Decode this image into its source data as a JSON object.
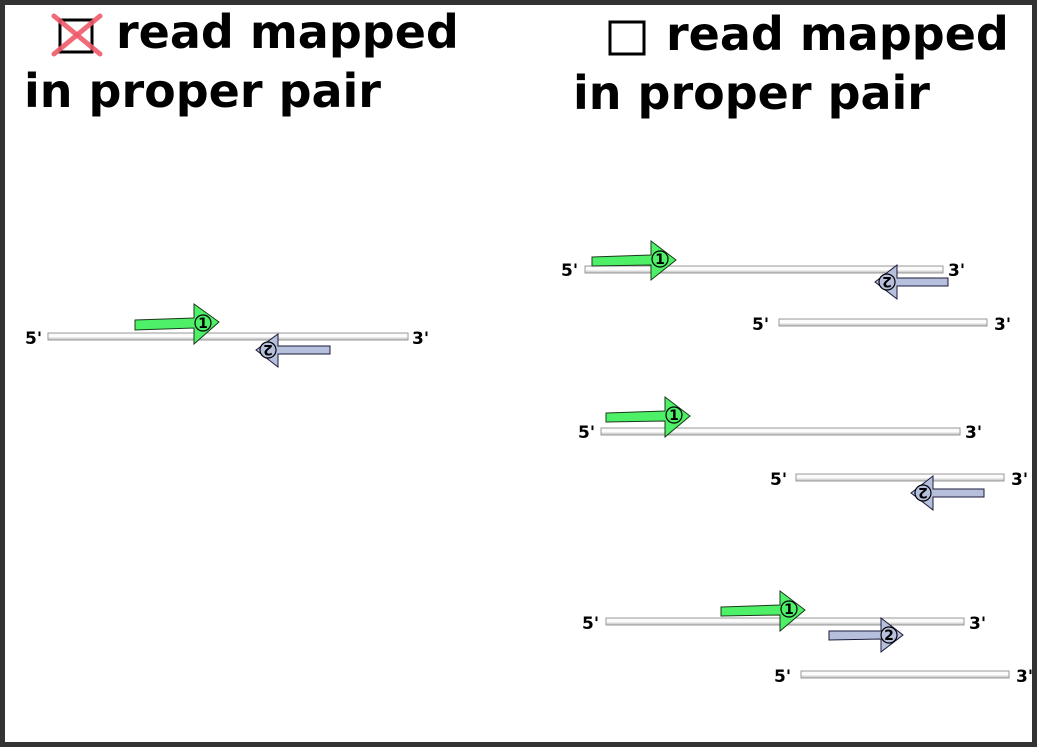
{
  "panels": {
    "checked": {
      "title_line1": "read mapped",
      "title_line2": "in proper pair",
      "checkbox_state": "checked-crossed"
    },
    "unchecked": {
      "title_line1": "read mapped",
      "title_line2": "in proper pair",
      "checkbox_state": "unchecked"
    }
  },
  "labels": {
    "five_prime": "5'",
    "three_prime": "3'"
  },
  "reads": {
    "read1": "1",
    "read2": "2"
  },
  "colors": {
    "read1_fill": "#4ef068",
    "read2_fill": "#b6c0dc",
    "cross": "#f05a6a",
    "strand": "#d8d8d8",
    "border": "#333333"
  }
}
